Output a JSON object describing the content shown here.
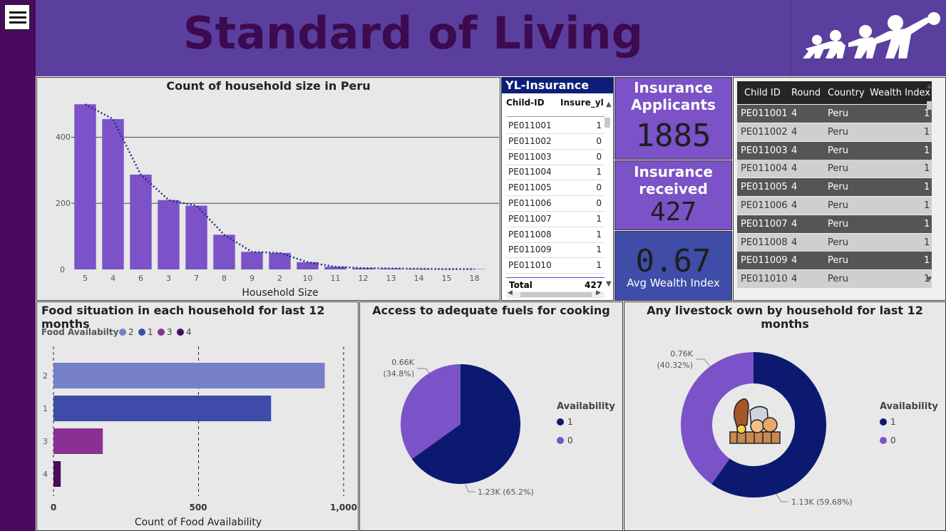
{
  "header": {
    "title": "Standard of Living"
  },
  "icons": {
    "menu": "hamburger-menu-icon",
    "logo": "family-people-icon",
    "livestock": "livestock-animals-icon"
  },
  "colors": {
    "sidebar": "#4a0a5e",
    "header": "#5b3f9e",
    "bar": "#7b52c7",
    "navy": "#0b1a70",
    "purple_slice": "#7b52c7"
  },
  "household_chart": {
    "title": "Count of household size in Peru",
    "xlabel": "Household Size",
    "y_ticks": [
      "400",
      "200",
      "0"
    ]
  },
  "insurance_table": {
    "title": "YL-Insurance",
    "col1": "Child-ID",
    "col2": "Insure_yl",
    "rows": [
      {
        "id": "PE011001",
        "v": "1"
      },
      {
        "id": "PE011002",
        "v": "0"
      },
      {
        "id": "PE011003",
        "v": "0"
      },
      {
        "id": "PE011004",
        "v": "1"
      },
      {
        "id": "PE011005",
        "v": "0"
      },
      {
        "id": "PE011006",
        "v": "0"
      },
      {
        "id": "PE011007",
        "v": "1"
      },
      {
        "id": "PE011008",
        "v": "1"
      },
      {
        "id": "PE011009",
        "v": "1"
      },
      {
        "id": "PE011010",
        "v": "1"
      }
    ],
    "total_label": "Total",
    "total_value": "427"
  },
  "cards": {
    "applicants_label": "Insurance Applicants",
    "applicants_value": "1885",
    "received_label": "Insurance received",
    "received_value": "427",
    "wealth_value": "0.67",
    "wealth_label": "Avg Wealth Index"
  },
  "wealth_table": {
    "headers": [
      "Child ID",
      "Round",
      "Country",
      "Wealth Index"
    ],
    "rows": [
      [
        "PE011001",
        "4",
        "Peru",
        "1"
      ],
      [
        "PE011002",
        "4",
        "Peru",
        "1"
      ],
      [
        "PE011003",
        "4",
        "Peru",
        "1"
      ],
      [
        "PE011004",
        "4",
        "Peru",
        "1"
      ],
      [
        "PE011005",
        "4",
        "Peru",
        "1"
      ],
      [
        "PE011006",
        "4",
        "Peru",
        "1"
      ],
      [
        "PE011007",
        "4",
        "Peru",
        "1"
      ],
      [
        "PE011008",
        "4",
        "Peru",
        "1"
      ],
      [
        "PE011009",
        "4",
        "Peru",
        "1"
      ],
      [
        "PE011010",
        "4",
        "Peru",
        "1"
      ]
    ]
  },
  "food_chart": {
    "title": "Food situation in each household for last 12 months",
    "legend_title": "Food Availabilty",
    "xlabel": "Count of Food Availability",
    "x_ticks": [
      "0",
      "500",
      "1,000"
    ]
  },
  "fuel_chart": {
    "title": "Access to adequate fuels for cooking",
    "legend_title": "Availability",
    "label_0": "0.66K",
    "label_0_pct": "(34.8%)",
    "label_1": "1.23K (65.2%)"
  },
  "livestock_chart": {
    "title": "Any livestock own by household for last 12 months",
    "legend_title": "Availability",
    "label_0": "0.76K",
    "label_0_pct": "(40.32%)",
    "label_1": "1.13K (59.68%)"
  },
  "chart_data": [
    {
      "type": "bar",
      "title": "Count of household size in Peru",
      "xlabel": "Household Size",
      "ylabel": "",
      "ylim": [
        0,
        520
      ],
      "categories": [
        "5",
        "4",
        "6",
        "3",
        "7",
        "8",
        "9",
        "2",
        "10",
        "11",
        "12",
        "13",
        "14",
        "15",
        "18"
      ],
      "values": [
        500,
        455,
        287,
        210,
        193,
        105,
        53,
        50,
        22,
        8,
        4,
        3,
        2,
        1,
        1
      ],
      "trendline": "dotted"
    },
    {
      "type": "bar",
      "orientation": "horizontal",
      "title": "Food situation in each household for last 12 months",
      "xlabel": "Count of Food Availability",
      "xlim": [
        0,
        1000
      ],
      "categories": [
        "2",
        "1",
        "3",
        "4"
      ],
      "values": [
        935,
        750,
        170,
        25
      ],
      "colors": [
        "#7680c8",
        "#3e4ba8",
        "#8a3094",
        "#4a0a5e"
      ],
      "legend_title": "Food Availabilty",
      "legend": [
        "2",
        "1",
        "3",
        "4"
      ],
      "legend_position": "top-left"
    },
    {
      "type": "pie",
      "title": "Access to adequate fuels for cooking",
      "legend_title": "Availability",
      "legend": [
        "1",
        "0"
      ],
      "legend_position": "right",
      "slices": [
        {
          "label": "1",
          "value": 1230,
          "pct": 65.2,
          "color": "#0b1a70"
        },
        {
          "label": "0",
          "value": 660,
          "pct": 34.8,
          "color": "#7b52c7"
        }
      ]
    },
    {
      "type": "pie",
      "donut": true,
      "title": "Any livestock own by household for last 12 months",
      "legend_title": "Availability",
      "legend": [
        "1",
        "0"
      ],
      "legend_position": "right",
      "slices": [
        {
          "label": "1",
          "value": 1130,
          "pct": 59.68,
          "color": "#0b1a70"
        },
        {
          "label": "0",
          "value": 760,
          "pct": 40.32,
          "color": "#7b52c7"
        }
      ]
    }
  ]
}
